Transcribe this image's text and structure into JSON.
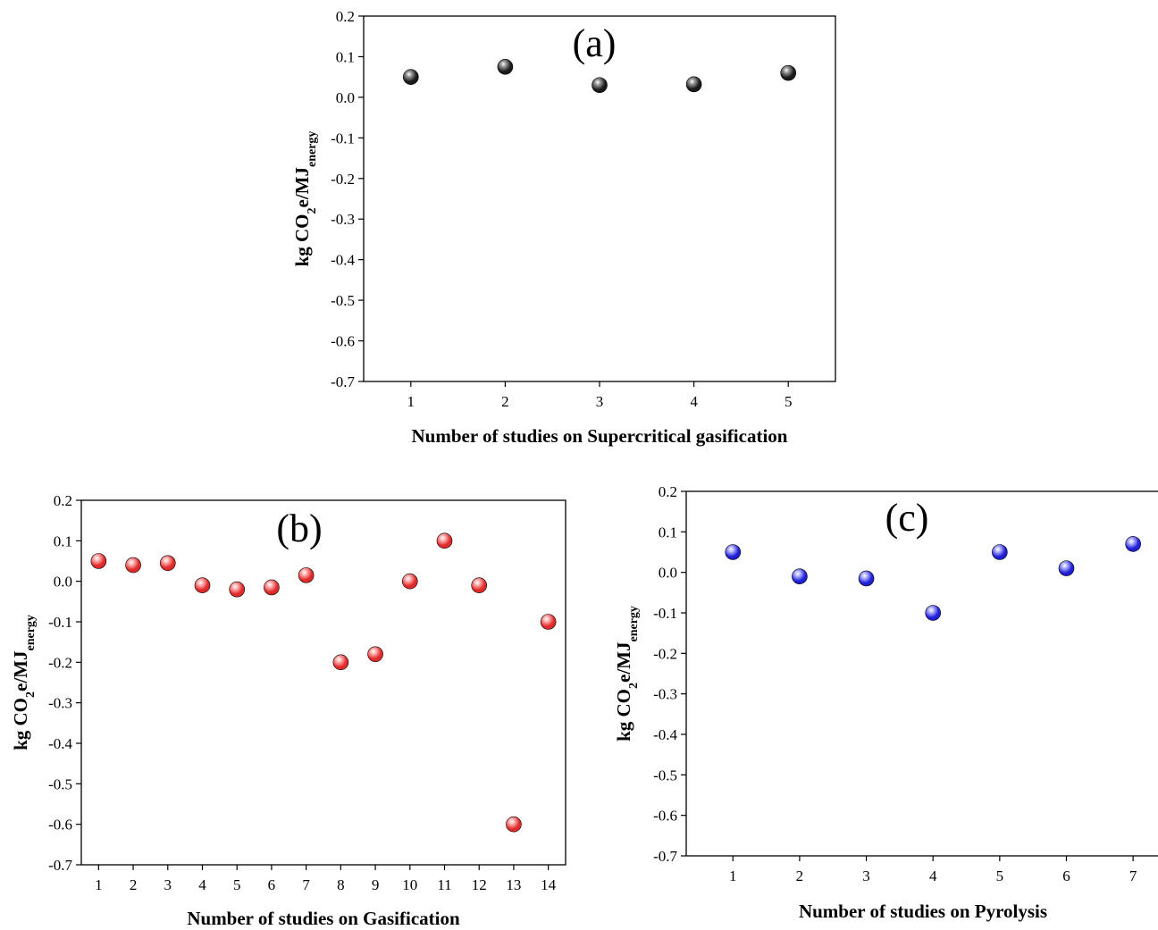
{
  "chart_data": [
    {
      "type": "scatter",
      "panel_label": "(a)",
      "xlabel": "Number of studies on Supercritical gasification",
      "ylabel": {
        "base": "kg CO",
        "sub1": "2",
        "mid": "e/MJ",
        "sub2": "energy"
      },
      "x": [
        1,
        2,
        3,
        4,
        5
      ],
      "y": [
        0.05,
        0.075,
        0.03,
        0.032,
        0.06
      ],
      "xlim": [
        0.5,
        5.5
      ],
      "ylim": [
        -0.7,
        0.2
      ],
      "xticks": [
        "1",
        "2",
        "3",
        "4",
        "5"
      ],
      "yticks": [
        "0.2",
        "0.1",
        "0.0",
        "-0.1",
        "-0.2",
        "-0.3",
        "-0.4",
        "-0.5",
        "-0.6",
        "-0.7"
      ],
      "marker_color": "#1a1a1a",
      "marker_highlight": "#9a9a9a",
      "grid": false
    },
    {
      "type": "scatter",
      "panel_label": "(b)",
      "xlabel": "Number of studies on Gasification",
      "ylabel": {
        "base": "kg CO",
        "sub1": "2",
        "mid": "e/MJ",
        "sub2": "energy"
      },
      "x": [
        1,
        2,
        3,
        4,
        5,
        6,
        7,
        8,
        9,
        10,
        11,
        12,
        13,
        14
      ],
      "y": [
        0.05,
        0.04,
        0.045,
        -0.01,
        -0.02,
        -0.015,
        0.015,
        -0.2,
        -0.18,
        0.0,
        0.1,
        -0.01,
        -0.6,
        -0.1
      ],
      "xlim": [
        0.5,
        14.5
      ],
      "ylim": [
        -0.7,
        0.2
      ],
      "xticks": [
        "1",
        "2",
        "3",
        "4",
        "5",
        "6",
        "7",
        "8",
        "9",
        "10",
        "11",
        "12",
        "13",
        "14"
      ],
      "yticks": [
        "0.2",
        "0.1",
        "0.0",
        "-0.1",
        "-0.2",
        "-0.3",
        "-0.4",
        "-0.5",
        "-0.6",
        "-0.7"
      ],
      "marker_color": "#e02a2a",
      "marker_highlight": "#ffb3b3",
      "grid": false
    },
    {
      "type": "scatter",
      "panel_label": "(c)",
      "xlabel": "Number of studies on Pyrolysis",
      "ylabel": {
        "base": "kg CO",
        "sub1": "2",
        "mid": "e/MJ",
        "sub2": "energy"
      },
      "x": [
        1,
        2,
        3,
        4,
        5,
        6,
        7
      ],
      "y": [
        0.05,
        -0.01,
        -0.015,
        -0.1,
        0.05,
        0.01,
        0.07
      ],
      "xlim": [
        0.3,
        7.4
      ],
      "ylim": [
        -0.7,
        0.2
      ],
      "xticks": [
        "1",
        "2",
        "3",
        "4",
        "5",
        "6",
        "7"
      ],
      "yticks": [
        "0.2",
        "0.1",
        "0.0",
        "-0.1",
        "-0.2",
        "-0.3",
        "-0.4",
        "-0.5",
        "-0.6",
        "-0.7"
      ],
      "marker_color": "#1f1fd6",
      "marker_highlight": "#b3b3ff",
      "grid": false
    }
  ]
}
